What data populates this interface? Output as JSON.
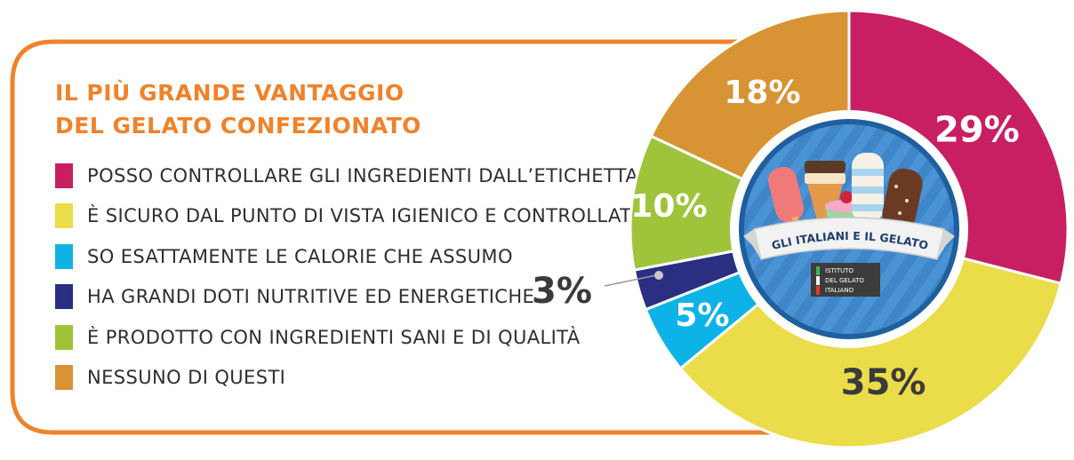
{
  "chart_data": {
    "type": "pie",
    "title": "IL PIÙ GRANDE VANTAGGIO DEL GELATO CONFEZIONATO",
    "title_lines": [
      "IL PIÙ GRANDE VANTAGGIO",
      "DEL GELATO CONFEZIONATO"
    ],
    "legend_position": "left",
    "slices": [
      {
        "label": "POSSO CONTROLLARE GLI INGREDIENTI DALL’ETICHETTA",
        "value": 29,
        "value_label": "29%",
        "color": "#c81f62"
      },
      {
        "label": "È SICURO DAL PUNTO DI VISTA IGIENICO E CONTROLLATO",
        "value": 35,
        "value_label": "35%",
        "color": "#ebdc49"
      },
      {
        "label": "SO ESATTAMENTE LE CALORIE CHE ASSUMO",
        "value": 5,
        "value_label": "5%",
        "color": "#0db3e6"
      },
      {
        "label": "HA GRANDI DOTI NUTRITIVE ED ENERGETICHE",
        "value": 3,
        "value_label": "3%",
        "color": "#2a2f82"
      },
      {
        "label": "È PRODOTTO CON INGREDIENTI SANI E DI QUALITÀ",
        "value": 10,
        "value_label": "10%",
        "color": "#9fc43b"
      },
      {
        "label": "NESSUNO DI QUESTI",
        "value": 18,
        "value_label": "18%",
        "color": "#d89334"
      }
    ]
  },
  "badge": {
    "banner_text": "GLI ITALIANI E IL GELATO",
    "logo_lines": [
      "ISTITUTO",
      "DEL GELATO",
      "ITALIANO"
    ],
    "logo_icon": "italian-flag-stripes",
    "illustration": "ice-cream-assortment"
  },
  "colors": {
    "frame": "#f0822a",
    "title": "#f0822a",
    "text": "#2e2e2e",
    "label_light": "#ffffff",
    "label_dark": "#3a3a3a",
    "badge_ring": "#1f5f9e",
    "badge_bg": "#3f86c8"
  }
}
